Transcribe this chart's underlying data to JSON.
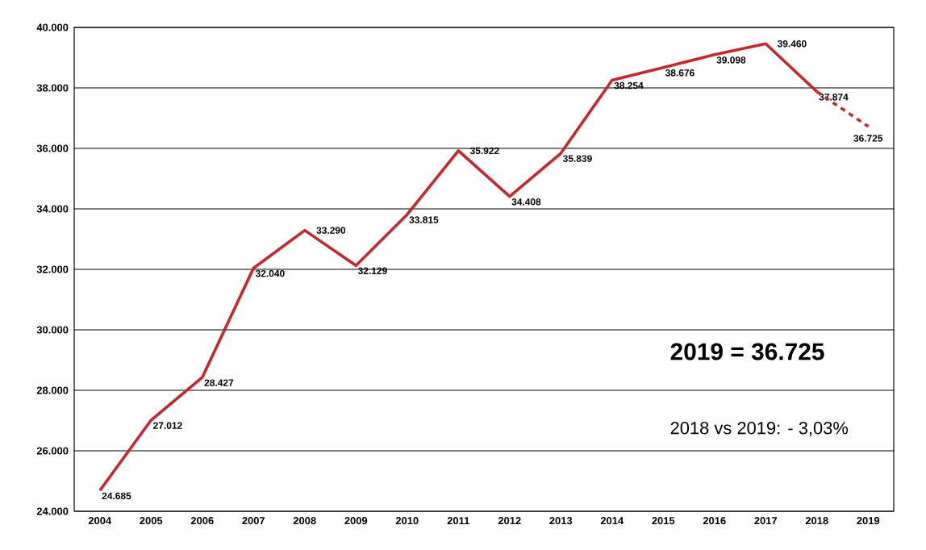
{
  "chart_data": {
    "type": "line",
    "categories": [
      "2004",
      "2005",
      "2006",
      "2007",
      "2008",
      "2009",
      "2010",
      "2011",
      "2012",
      "2013",
      "2014",
      "2015",
      "2016",
      "2017",
      "2018",
      "2019"
    ],
    "series": [
      {
        "color": "#c8262c",
        "line_style": "solid",
        "values": [
          24685,
          27012,
          28427,
          32040,
          33290,
          32129,
          33815,
          35922,
          34408,
          35839,
          38254,
          38676,
          39098,
          39460,
          37874,
          null
        ],
        "value_labels": [
          "24.685",
          "27.012",
          "28.427",
          "32.040",
          "33.290",
          "32.129",
          "33.815",
          "35.922",
          "34.408",
          "35.839",
          "38.254",
          "38.676",
          "39.098",
          "39.460",
          "37.874",
          null
        ]
      },
      {
        "color": "#c8262c",
        "line_style": "dashed",
        "values": [
          null,
          null,
          null,
          null,
          null,
          null,
          null,
          null,
          null,
          null,
          null,
          null,
          null,
          null,
          37874,
          36725
        ],
        "value_labels": [
          null,
          null,
          null,
          null,
          null,
          null,
          null,
          null,
          null,
          null,
          null,
          null,
          null,
          null,
          null,
          "36.725"
        ]
      }
    ],
    "ylim": [
      24000,
      40000
    ],
    "yticks": [
      {
        "value": 24000,
        "label": "24.000"
      },
      {
        "value": 26000,
        "label": "26.000"
      },
      {
        "value": 28000,
        "label": "28.000"
      },
      {
        "value": 30000,
        "label": "30.000"
      },
      {
        "value": 32000,
        "label": "32.000"
      },
      {
        "value": 34000,
        "label": "34.000"
      },
      {
        "value": 36000,
        "label": "36.000"
      },
      {
        "value": 38000,
        "label": "38.000"
      },
      {
        "value": 40000,
        "label": "40.000"
      }
    ],
    "grid": "y",
    "marker": "none",
    "annotations": [
      "2019 = 36.725",
      "2018 vs 2019: - 3,03%"
    ]
  }
}
